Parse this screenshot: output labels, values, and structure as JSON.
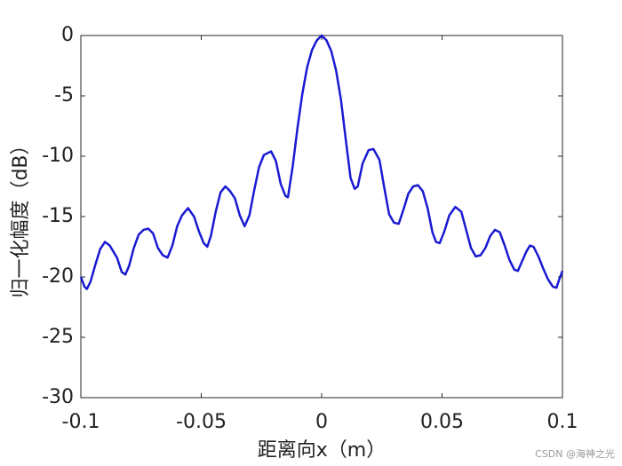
{
  "chart_data": {
    "type": "line",
    "xlabel": "距离向x（m）",
    "ylabel": "归一化幅度（dB）",
    "watermark": "CSDN @海神之光",
    "x": [
      -0.1,
      -0.0985,
      -0.0975,
      -0.096,
      -0.094,
      -0.092,
      -0.09,
      -0.088,
      -0.0865,
      -0.085,
      -0.083,
      -0.0815,
      -0.08,
      -0.078,
      -0.076,
      -0.074,
      -0.072,
      -0.07,
      -0.068,
      -0.066,
      -0.064,
      -0.062,
      -0.06,
      -0.058,
      -0.0555,
      -0.053,
      -0.051,
      -0.049,
      -0.0475,
      -0.046,
      -0.044,
      -0.042,
      -0.04,
      -0.038,
      -0.036,
      -0.034,
      -0.032,
      -0.03,
      -0.028,
      -0.026,
      -0.024,
      -0.021,
      -0.019,
      -0.017,
      -0.015,
      -0.014,
      -0.012,
      -0.01,
      -0.008,
      -0.006,
      -0.004,
      -0.002,
      0,
      0.002,
      0.004,
      0.006,
      0.008,
      0.01,
      0.012,
      0.0137,
      0.015,
      0.017,
      0.0195,
      0.0215,
      0.024,
      0.026,
      0.028,
      0.03,
      0.032,
      0.034,
      0.036,
      0.038,
      0.04,
      0.042,
      0.044,
      0.046,
      0.0475,
      0.049,
      0.051,
      0.053,
      0.0555,
      0.058,
      0.06,
      0.062,
      0.064,
      0.066,
      0.068,
      0.07,
      0.072,
      0.074,
      0.076,
      0.078,
      0.08,
      0.0815,
      0.083,
      0.085,
      0.0865,
      0.088,
      0.09,
      0.092,
      0.094,
      0.096,
      0.0975,
      0.0985,
      0.1
    ],
    "series": [
      {
        "name": "幅度",
        "color": "#1a1ad2",
        "values": [
          -20.0,
          -20.8,
          -21.0,
          -20.4,
          -19.0,
          -17.7,
          -17.1,
          -17.4,
          -17.9,
          -18.4,
          -19.6,
          -19.8,
          -19.1,
          -17.6,
          -16.5,
          -16.1,
          -16.0,
          -16.4,
          -17.6,
          -18.2,
          -18.4,
          -17.4,
          -15.8,
          -14.9,
          -14.3,
          -15.0,
          -16.2,
          -17.2,
          -17.5,
          -16.6,
          -14.6,
          -13.0,
          -12.5,
          -12.9,
          -13.5,
          -14.9,
          -15.8,
          -14.9,
          -12.8,
          -10.9,
          -9.9,
          -9.6,
          -10.4,
          -12.3,
          -13.3,
          -13.4,
          -10.8,
          -7.6,
          -4.8,
          -2.6,
          -1.2,
          -0.4,
          0,
          -0.4,
          -1.3,
          -2.9,
          -5.3,
          -8.6,
          -11.8,
          -12.7,
          -12.5,
          -10.6,
          -9.5,
          -9.4,
          -10.3,
          -12.6,
          -14.8,
          -15.5,
          -15.6,
          -14.4,
          -13.1,
          -12.5,
          -12.4,
          -12.9,
          -14.3,
          -16.3,
          -17.1,
          -17.2,
          -16.2,
          -14.9,
          -14.2,
          -14.6,
          -16.1,
          -17.6,
          -18.3,
          -18.2,
          -17.6,
          -16.6,
          -16.1,
          -16.3,
          -17.4,
          -18.6,
          -19.4,
          -19.5,
          -18.8,
          -17.9,
          -17.4,
          -17.5,
          -18.3,
          -19.3,
          -20.2,
          -20.8,
          -20.9,
          -20.3,
          -19.5
        ]
      }
    ],
    "xlim": [
      -0.1,
      0.1
    ],
    "ylim": [
      -30,
      0
    ],
    "xticks": [
      -0.1,
      -0.05,
      0,
      0.05,
      0.1
    ],
    "yticks": [
      -30,
      -25,
      -20,
      -15,
      -10,
      -5,
      0
    ]
  }
}
